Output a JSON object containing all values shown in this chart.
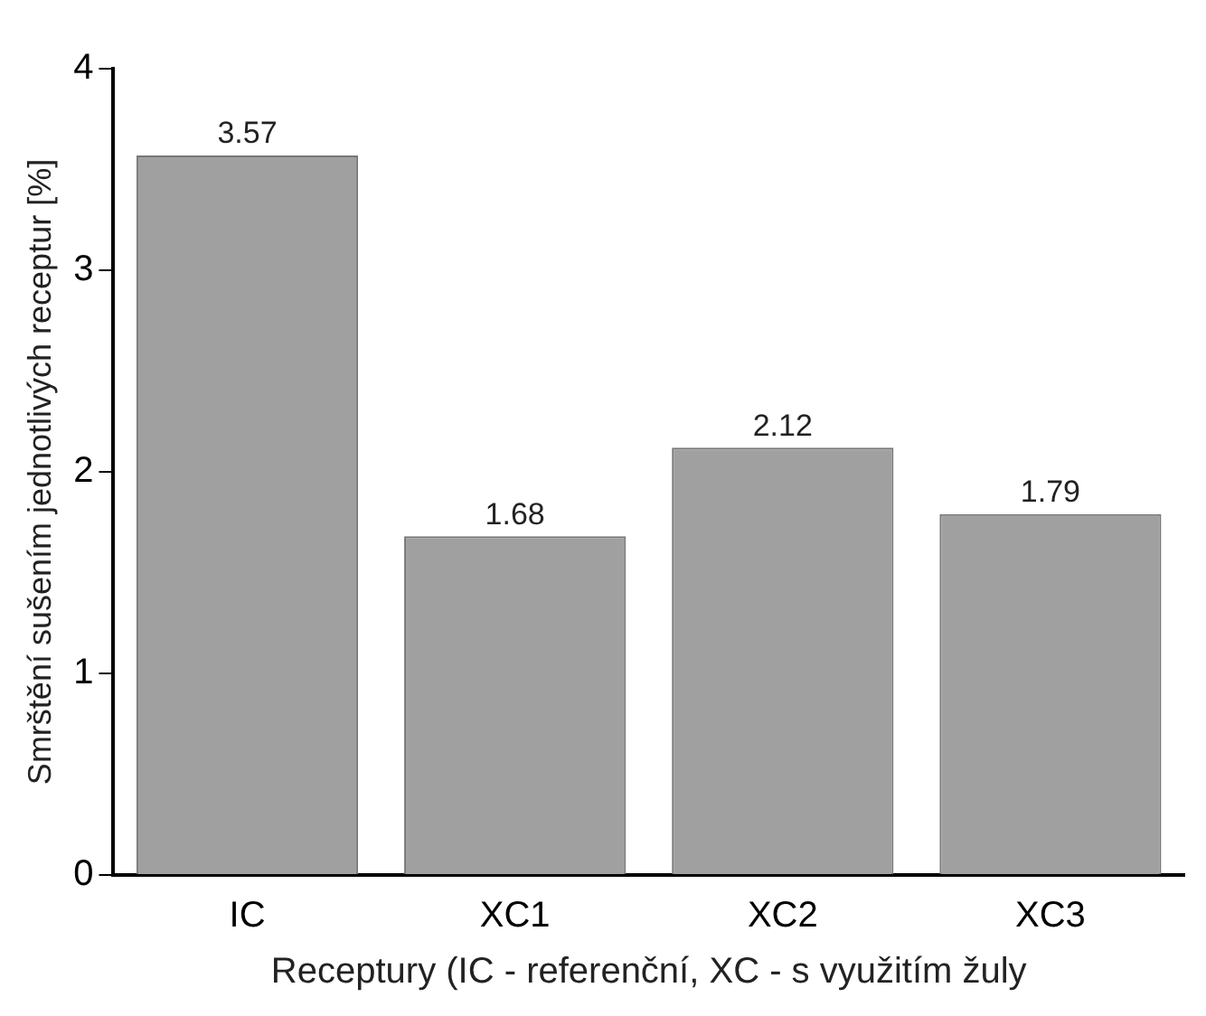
{
  "chart_data": {
    "type": "bar",
    "xlabel": "Receptury (IC - referenční, XC - s využitím žuly",
    "ylabel": "Smrštění sušením jednotlivých receptur [%]",
    "categories": [
      "IC",
      "XC1",
      "XC2",
      "XC3"
    ],
    "values": [
      3.57,
      1.68,
      2.12,
      1.79
    ],
    "color": "#a0a0a0",
    "ylim": [
      0,
      4
    ],
    "yticks": [
      0,
      1,
      2,
      3,
      4
    ],
    "grid": false,
    "data_labels": true
  }
}
